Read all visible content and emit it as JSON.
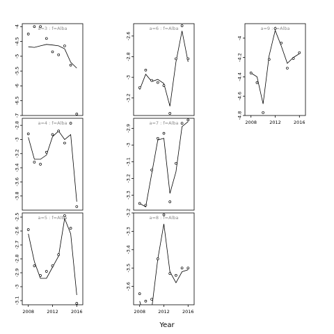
{
  "figure": {
    "xlabel": "Year"
  },
  "chart_data": [
    {
      "type": "scatter",
      "title": "a=3 : f=Alba",
      "xlim": [
        2007,
        2017
      ],
      "ylim": [
        -7.0,
        -3.9
      ],
      "xticks": [
        2008,
        2012,
        2016
      ],
      "yticks": [
        -4.0,
        -4.5,
        -5.0,
        -5.5,
        -6.0,
        -6.5,
        -7.0
      ],
      "show_xticks": false,
      "points": [
        [
          2008,
          -4.25
        ],
        [
          2009,
          -4.0
        ],
        [
          2010,
          -4.0
        ],
        [
          2011,
          -4.4
        ],
        [
          2012,
          -4.85
        ],
        [
          2013,
          -4.95
        ],
        [
          2014,
          -4.65
        ],
        [
          2015,
          -5.3
        ],
        [
          2016,
          -6.95
        ]
      ],
      "fit": [
        [
          2008,
          -4.68
        ],
        [
          2009,
          -4.7
        ],
        [
          2010,
          -4.65
        ],
        [
          2011,
          -4.6
        ],
        [
          2012,
          -4.62
        ],
        [
          2013,
          -4.65
        ],
        [
          2014,
          -4.75
        ],
        [
          2015,
          -5.2
        ],
        [
          2016,
          -5.4
        ]
      ]
    },
    {
      "type": "scatter",
      "title": "a=6 : f=Alba",
      "xlim": [
        2007,
        2017
      ],
      "ylim": [
        -3.37,
        -2.48
      ],
      "xticks": [
        2008,
        2012,
        2016
      ],
      "yticks": [
        -2.6,
        -2.8,
        -3.0,
        -3.2
      ],
      "show_xticks": false,
      "points": [
        [
          2008,
          -3.1
        ],
        [
          2009,
          -2.93
        ],
        [
          2010,
          -3.03
        ],
        [
          2011,
          -3.05
        ],
        [
          2012,
          -3.08
        ],
        [
          2013,
          -3.35
        ],
        [
          2014,
          -2.82
        ],
        [
          2015,
          -2.5
        ],
        [
          2016,
          -2.82
        ]
      ],
      "fit": [
        [
          2008,
          -3.12
        ],
        [
          2009,
          -2.97
        ],
        [
          2010,
          -3.04
        ],
        [
          2011,
          -3.02
        ],
        [
          2012,
          -3.06
        ],
        [
          2013,
          -3.28
        ],
        [
          2014,
          -2.85
        ],
        [
          2015,
          -2.55
        ],
        [
          2016,
          -2.85
        ]
      ]
    },
    {
      "type": "scatter",
      "title": "a=9 : f=Alba",
      "xlim": [
        2007,
        2017
      ],
      "ylim": [
        -4.8,
        -3.85
      ],
      "xticks": [
        2008,
        2012,
        2016
      ],
      "yticks": [
        -4.0,
        -4.2,
        -4.4,
        -4.6,
        -4.8
      ],
      "show_xticks": true,
      "points": [
        [
          2008,
          -4.36
        ],
        [
          2009,
          -4.46
        ],
        [
          2010,
          -4.77
        ],
        [
          2011,
          -4.22
        ],
        [
          2012,
          -3.9
        ],
        [
          2013,
          -4.05
        ],
        [
          2014,
          -4.31
        ],
        [
          2015,
          -4.21
        ],
        [
          2016,
          -4.15
        ]
      ],
      "fit": [
        [
          2008,
          -4.36
        ],
        [
          2009,
          -4.4
        ],
        [
          2010,
          -4.68
        ],
        [
          2011,
          -4.18
        ],
        [
          2012,
          -3.92
        ],
        [
          2013,
          -4.08
        ],
        [
          2014,
          -4.26
        ],
        [
          2015,
          -4.2
        ],
        [
          2016,
          -4.16
        ]
      ]
    },
    {
      "type": "scatter",
      "title": "a=4 : f=Alba",
      "xlim": [
        2007,
        2017
      ],
      "ylim": [
        -4.0,
        -2.7
      ],
      "xticks": [
        2008,
        2012,
        2016
      ],
      "yticks": [
        -2.8,
        -3.0,
        -3.2,
        -3.4,
        -3.6,
        -3.8
      ],
      "show_xticks": false,
      "points": [
        [
          2008,
          -2.92
        ],
        [
          2009,
          -3.32
        ],
        [
          2010,
          -3.35
        ],
        [
          2011,
          -3.18
        ],
        [
          2012,
          -2.93
        ],
        [
          2013,
          -2.88
        ],
        [
          2014,
          -3.05
        ],
        [
          2015,
          -2.77
        ],
        [
          2016,
          -3.95
        ]
      ],
      "fit": [
        [
          2008,
          -2.97
        ],
        [
          2009,
          -3.28
        ],
        [
          2010,
          -3.28
        ],
        [
          2011,
          -3.22
        ],
        [
          2012,
          -2.96
        ],
        [
          2013,
          -2.88
        ],
        [
          2014,
          -3.0
        ],
        [
          2015,
          -2.93
        ],
        [
          2016,
          -3.88
        ]
      ]
    },
    {
      "type": "scatter",
      "title": "a=7 : f=Alba",
      "xlim": [
        2007,
        2017
      ],
      "ylim": [
        -3.39,
        -2.84
      ],
      "xticks": [
        2008,
        2012,
        2016
      ],
      "yticks": [
        -2.9,
        -3.0,
        -3.1,
        -3.2,
        -3.3
      ],
      "show_xticks": false,
      "points": [
        [
          2008,
          -3.35
        ],
        [
          2009,
          -3.36
        ],
        [
          2010,
          -3.15
        ],
        [
          2011,
          -2.96
        ],
        [
          2012,
          -2.93
        ],
        [
          2013,
          -3.34
        ],
        [
          2014,
          -3.11
        ],
        [
          2015,
          -2.87
        ],
        [
          2016,
          -2.85
        ]
      ],
      "fit": [
        [
          2008,
          -3.35
        ],
        [
          2009,
          -3.37
        ],
        [
          2010,
          -3.17
        ],
        [
          2011,
          -2.97
        ],
        [
          2012,
          -2.96
        ],
        [
          2013,
          -3.29
        ],
        [
          2014,
          -3.16
        ],
        [
          2015,
          -2.89
        ],
        [
          2016,
          -2.86
        ]
      ]
    },
    {
      "type": "scatter",
      "title": "a=5 : f=Alba",
      "xlim": [
        2007,
        2017
      ],
      "ylim": [
        -3.13,
        -2.47
      ],
      "xticks": [
        2008,
        2012,
        2016
      ],
      "yticks": [
        -2.5,
        -2.6,
        -2.7,
        -2.8,
        -2.9,
        -3.0,
        -3.1
      ],
      "show_xticks": true,
      "points": [
        [
          2008,
          -2.59
        ],
        [
          2009,
          -2.85
        ],
        [
          2010,
          -2.92
        ],
        [
          2011,
          -2.89
        ],
        [
          2012,
          -2.85
        ],
        [
          2013,
          -2.77
        ],
        [
          2014,
          -2.49
        ],
        [
          2015,
          -2.58
        ],
        [
          2016,
          -3.12
        ]
      ],
      "fit": [
        [
          2008,
          -2.62
        ],
        [
          2009,
          -2.82
        ],
        [
          2010,
          -2.94
        ],
        [
          2011,
          -2.94
        ],
        [
          2012,
          -2.86
        ],
        [
          2013,
          -2.78
        ],
        [
          2014,
          -2.51
        ],
        [
          2015,
          -2.62
        ],
        [
          2016,
          -3.06
        ]
      ]
    },
    {
      "type": "scatter",
      "title": "a=8 : f=Alba",
      "xlim": [
        2007,
        2017
      ],
      "ylim": [
        -3.7,
        -3.2
      ],
      "xticks": [
        2008,
        2012,
        2016
      ],
      "yticks": [
        -3.2,
        -3.3,
        -3.4,
        -3.5,
        -3.6
      ],
      "show_xticks": true,
      "points": [
        [
          2008,
          -3.64
        ],
        [
          2009,
          -3.68
        ],
        [
          2010,
          -3.67
        ],
        [
          2011,
          -3.45
        ],
        [
          2012,
          -3.21
        ],
        [
          2013,
          -3.53
        ],
        [
          2014,
          -3.54
        ],
        [
          2015,
          -3.5
        ],
        [
          2016,
          -3.5
        ]
      ],
      "fit": [
        [
          2008,
          -3.68
        ],
        [
          2009,
          -3.79
        ],
        [
          2010,
          -3.72
        ],
        [
          2011,
          -3.45
        ],
        [
          2012,
          -3.26
        ],
        [
          2013,
          -3.52
        ],
        [
          2014,
          -3.58
        ],
        [
          2015,
          -3.52
        ],
        [
          2016,
          -3.51
        ]
      ]
    }
  ]
}
